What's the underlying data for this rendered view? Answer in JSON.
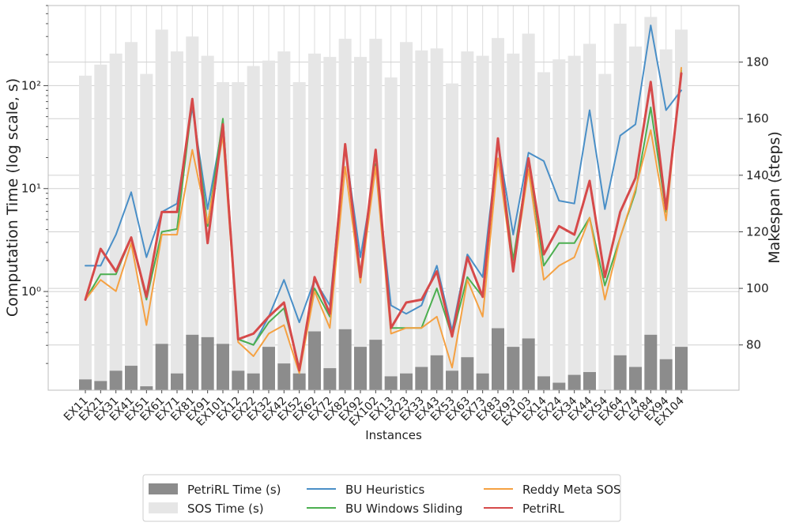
{
  "chart_data": {
    "type": "bar+line",
    "title": "",
    "xlabel": "Instances",
    "ylabel_left": "Computation Time (log scale, s)",
    "ylabel_right": "Makespan (steps)",
    "yscale_left": "log",
    "ylim_left": [
      0.11,
      600
    ],
    "ylim_right": [
      64,
      200
    ],
    "yticks_left": [
      "10^{-1}",
      "10^{0}",
      "10^{1}",
      "10^{2}"
    ],
    "yticks_left_display": [
      "",
      "10⁰",
      "10¹",
      "10²"
    ],
    "yticks_right": [
      80,
      100,
      120,
      140,
      160,
      180
    ],
    "grid": true,
    "legend_position": "bottom-center",
    "categories": [
      "EX11",
      "EX21",
      "EX31",
      "EX41",
      "EX51",
      "EX61",
      "EX71",
      "EX81",
      "EX91",
      "EX101",
      "EX12",
      "EX22",
      "EX32",
      "EX42",
      "EX52",
      "EX62",
      "EX72",
      "EX82",
      "EX92",
      "EX102",
      "EX13",
      "EX23",
      "EX33",
      "EX43",
      "EX53",
      "EX63",
      "EX73",
      "EX83",
      "EX93",
      "EX103",
      "EX14",
      "EX24",
      "EX34",
      "EX44",
      "EX54",
      "EX64",
      "EX74",
      "EX84",
      "EX94",
      "EX104"
    ],
    "bar_series": [
      {
        "name": "PetriRL Time (s)",
        "axis": "left",
        "color": "#8c8c8c",
        "values": [
          0.14,
          0.135,
          0.17,
          0.19,
          0.12,
          0.31,
          0.16,
          0.38,
          0.36,
          0.31,
          0.17,
          0.16,
          0.29,
          0.2,
          0.16,
          0.41,
          0.18,
          0.43,
          0.29,
          0.34,
          0.15,
          0.16,
          0.185,
          0.24,
          0.17,
          0.23,
          0.16,
          0.44,
          0.29,
          0.35,
          0.15,
          0.13,
          0.155,
          0.165,
          0.11,
          0.24,
          0.185,
          0.38,
          0.22,
          0.29
        ]
      },
      {
        "name": "SOS Time (s)",
        "axis": "left",
        "color": "#e6e6e6",
        "values": [
          125,
          160,
          205,
          265,
          130,
          350,
          215,
          300,
          195,
          108,
          108,
          155,
          175,
          215,
          108,
          205,
          190,
          285,
          190,
          285,
          120,
          265,
          220,
          230,
          105,
          215,
          195,
          290,
          205,
          320,
          135,
          180,
          195,
          255,
          130,
          400,
          240,
          465,
          225,
          350
        ]
      }
    ],
    "series": [
      {
        "name": "BU Heuristics",
        "axis": "right",
        "color": "#4a8fc7",
        "values": [
          108,
          108,
          119,
          134,
          111,
          127,
          130,
          164,
          128,
          158,
          82,
          80,
          90,
          103,
          88,
          103,
          94,
          150,
          111,
          143,
          94,
          91,
          94,
          108,
          85,
          112,
          104,
          152,
          119,
          148,
          145,
          131,
          130,
          163,
          128,
          154,
          158,
          193,
          163,
          170
        ]
      },
      {
        "name": "BU Windows Sliding",
        "axis": "right",
        "color": "#4caf50",
        "values": [
          96,
          105,
          105,
          118,
          96,
          120,
          121,
          166,
          122,
          160,
          82,
          80,
          88,
          93,
          72,
          100,
          90,
          151,
          105,
          144,
          86,
          86,
          86,
          100,
          83,
          104,
          97,
          152,
          110,
          145,
          108,
          116,
          116,
          125,
          101,
          118,
          134,
          164,
          127,
          177
        ]
      },
      {
        "name": "Reddy Meta SOS",
        "axis": "right",
        "color": "#f5a142",
        "values": [
          96,
          103,
          99,
          116,
          87,
          119,
          119,
          149,
          123,
          154,
          81,
          76,
          84,
          87,
          70,
          99,
          86,
          143,
          102,
          143,
          84,
          86,
          86,
          90,
          72,
          103,
          90,
          146,
          106,
          142,
          103,
          108,
          111,
          125,
          96,
          118,
          135,
          156,
          124,
          178
        ]
      },
      {
        "name": "PetriRL",
        "axis": "right",
        "color": "#d64a4a",
        "values": [
          96,
          114,
          106,
          118,
          97,
          127,
          127,
          167,
          116,
          158,
          82,
          84,
          90,
          95,
          71,
          104,
          91,
          151,
          104,
          149,
          86,
          95,
          96,
          106,
          83,
          111,
          97,
          153,
          106,
          146,
          112,
          122,
          119,
          138,
          104,
          127,
          139,
          173,
          128,
          176
        ]
      }
    ]
  },
  "legend": {
    "items": [
      {
        "label": "PetriRL Time (s)",
        "kind": "patch",
        "color": "#8c8c8c"
      },
      {
        "label": "SOS Time (s)",
        "kind": "patch",
        "color": "#e6e6e6"
      },
      {
        "label": "BU Heuristics",
        "kind": "line",
        "color": "#4a8fc7"
      },
      {
        "label": "BU Windows Sliding",
        "kind": "line",
        "color": "#4caf50"
      },
      {
        "label": "Reddy Meta SOS",
        "kind": "line",
        "color": "#f5a142"
      },
      {
        "label": "PetriRL",
        "kind": "line",
        "color": "#d64a4a"
      }
    ]
  }
}
